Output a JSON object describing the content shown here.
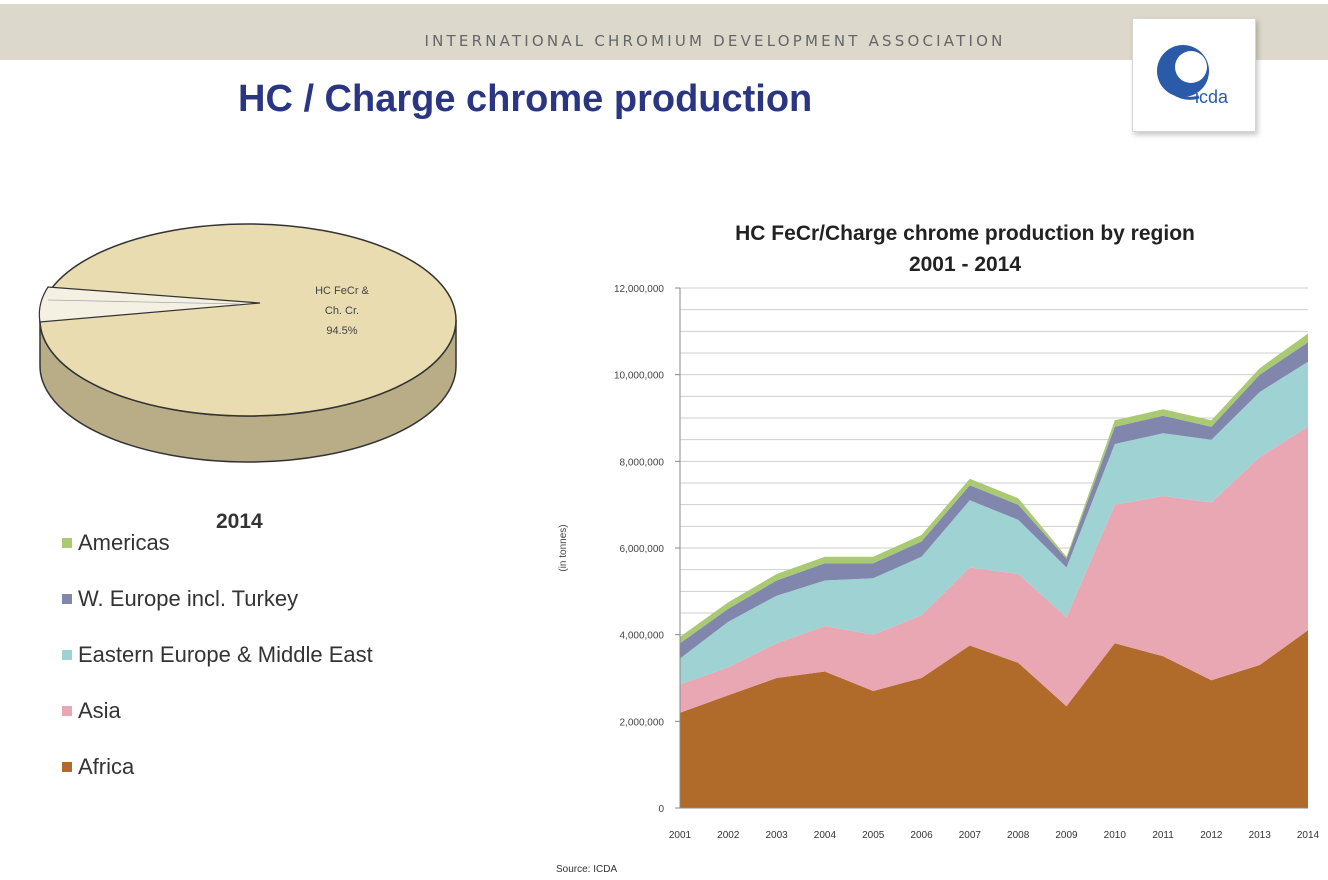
{
  "header": {
    "org_name": "INTERNATIONAL CHROMIUM DEVELOPMENT ASSOCIATION",
    "title": "HC / Charge chrome production",
    "logo_text": "icda"
  },
  "colors": {
    "banner": "#dcd8cb",
    "title": "#2b3683",
    "logo_blue": "#2b5aa8",
    "Africa": "#b06a2a",
    "Asia": "#e8a7b3",
    "Eastern Europe & Middle East": "#9fd3d3",
    "W. Europe incl. Turkey": "#8186ad",
    "Americas": "#a9c973",
    "pie": "#e8dcb0",
    "pie_side": "#b9ad88"
  },
  "pie": {
    "year": "2014",
    "slice_label_lines": [
      "HC FeCr &",
      "Ch. Cr.",
      "94.5%"
    ],
    "main_share_percent": 94.5
  },
  "legend": {
    "items": [
      {
        "label": "Americas",
        "color": "#a9c973"
      },
      {
        "label": "W. Europe incl. Turkey",
        "color": "#8186ad"
      },
      {
        "label": "Eastern Europe & Middle East",
        "color": "#9fd3d3"
      },
      {
        "label": "Asia",
        "color": "#e8a7b3"
      },
      {
        "label": "Africa",
        "color": "#b06a2a"
      }
    ]
  },
  "footer": {
    "source": "Source: ICDA"
  },
  "chart_data": {
    "type": "area",
    "stacked": true,
    "title": "HC FeCr/Charge chrome production by region",
    "subtitle": "2001 - 2014",
    "ylabel": "(in tonnes)",
    "ylim": [
      0,
      12000000
    ],
    "yticks": [
      0,
      2000000,
      4000000,
      6000000,
      8000000,
      10000000,
      12000000
    ],
    "ytick_labels": [
      "0",
      "2,000,000",
      "4,000,000",
      "6,000,000",
      "8,000,000",
      "10,000,000",
      "12,000,000"
    ],
    "categories": [
      "2001",
      "2002",
      "2003",
      "2004",
      "2005",
      "2006",
      "2007",
      "2008",
      "2009",
      "2010",
      "2011",
      "2012",
      "2013",
      "2014"
    ],
    "grid": true,
    "series": [
      {
        "name": "Africa",
        "color": "#b06a2a",
        "values": [
          2200000,
          2600000,
          3000000,
          3150000,
          2700000,
          3000000,
          3750000,
          3350000,
          2350000,
          3800000,
          3500000,
          2950000,
          3300000,
          4100000
        ]
      },
      {
        "name": "Asia",
        "color": "#e8a7b3",
        "values": [
          650000,
          650000,
          800000,
          1050000,
          1300000,
          1450000,
          1800000,
          2050000,
          2050000,
          3200000,
          3700000,
          4100000,
          4800000,
          4700000
        ]
      },
      {
        "name": "Eastern Europe & Middle East",
        "color": "#9fd3d3",
        "values": [
          600000,
          1050000,
          1100000,
          1050000,
          1300000,
          1350000,
          1550000,
          1250000,
          1150000,
          1400000,
          1450000,
          1450000,
          1500000,
          1500000
        ]
      },
      {
        "name": "W. Europe incl. Turkey",
        "color": "#8186ad",
        "values": [
          350000,
          300000,
          350000,
          400000,
          350000,
          350000,
          350000,
          350000,
          200000,
          400000,
          400000,
          300000,
          400000,
          450000
        ]
      },
      {
        "name": "Americas",
        "color": "#a9c973",
        "values": [
          150000,
          150000,
          150000,
          150000,
          150000,
          150000,
          150000,
          150000,
          50000,
          150000,
          150000,
          150000,
          150000,
          200000
        ]
      }
    ],
    "source": "Source: ICDA"
  }
}
